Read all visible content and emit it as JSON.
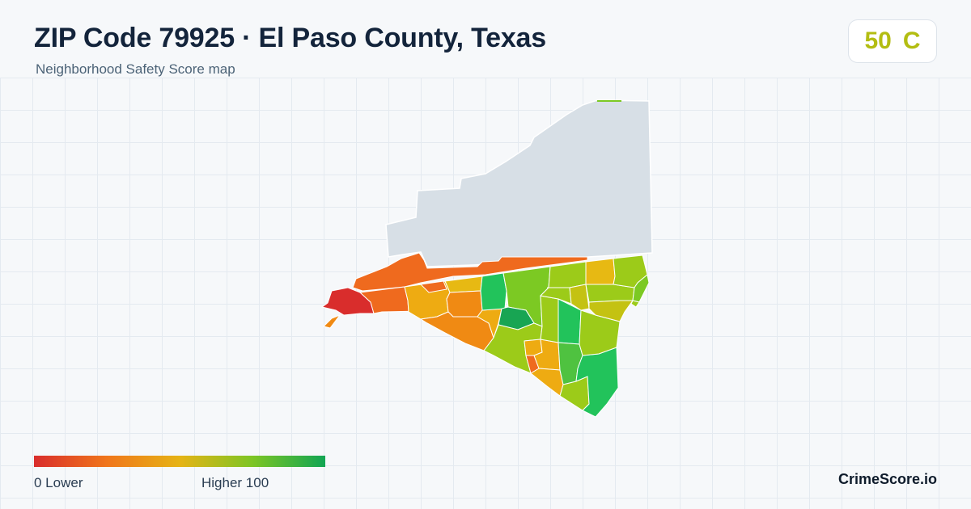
{
  "header": {
    "title": "ZIP Code 79925 · El Paso County, Texas",
    "subtitle": "Neighborhood Safety Score map"
  },
  "score": {
    "value": "50",
    "grade": "C",
    "color": "#b3bd12"
  },
  "map": {
    "no_data_color": "#d7dfe6",
    "tract_score_colors": [
      "#d92d2c",
      "#ef6a1e",
      "#f08a13",
      "#eeab12",
      "#e7b913",
      "#c4c212",
      "#9ccb19",
      "#7cc923",
      "#4fc240",
      "#22c35b",
      "#18a553"
    ]
  },
  "legend": {
    "low_label": "0  Lower",
    "high_label": "Higher  100",
    "gradient_colors": [
      "#d92d2c",
      "#f0761b",
      "#e6b315",
      "#7dc524",
      "#11a553"
    ]
  },
  "brand": {
    "name": "CrimeScore.io"
  }
}
